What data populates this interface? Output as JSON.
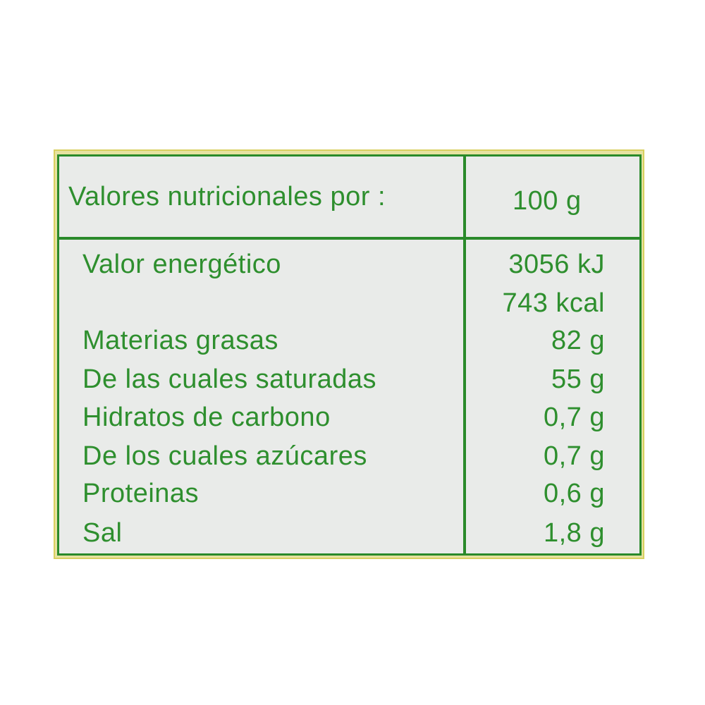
{
  "header": {
    "label": "Valores nutricionales por :",
    "unit": "100 g"
  },
  "rows": [
    {
      "name": "Valor energético",
      "value": "3056 kJ"
    },
    {
      "name": "",
      "value": "743 kcal"
    },
    {
      "name": "Materias grasas",
      "value": "82 g"
    },
    {
      "name": "De las cuales saturadas",
      "value": "55 g"
    },
    {
      "name": "Hidratos de carbono",
      "value": "0,7 g"
    },
    {
      "name": "De los cuales azúcares",
      "value": "0,7 g"
    },
    {
      "name": "Proteinas",
      "value": "0,6 g"
    },
    {
      "name": "Sal",
      "value": "1,8 g"
    }
  ],
  "colors": {
    "text": "#2e8f2e",
    "border": "#2a8a2a",
    "outer_border": "#d8d060"
  }
}
